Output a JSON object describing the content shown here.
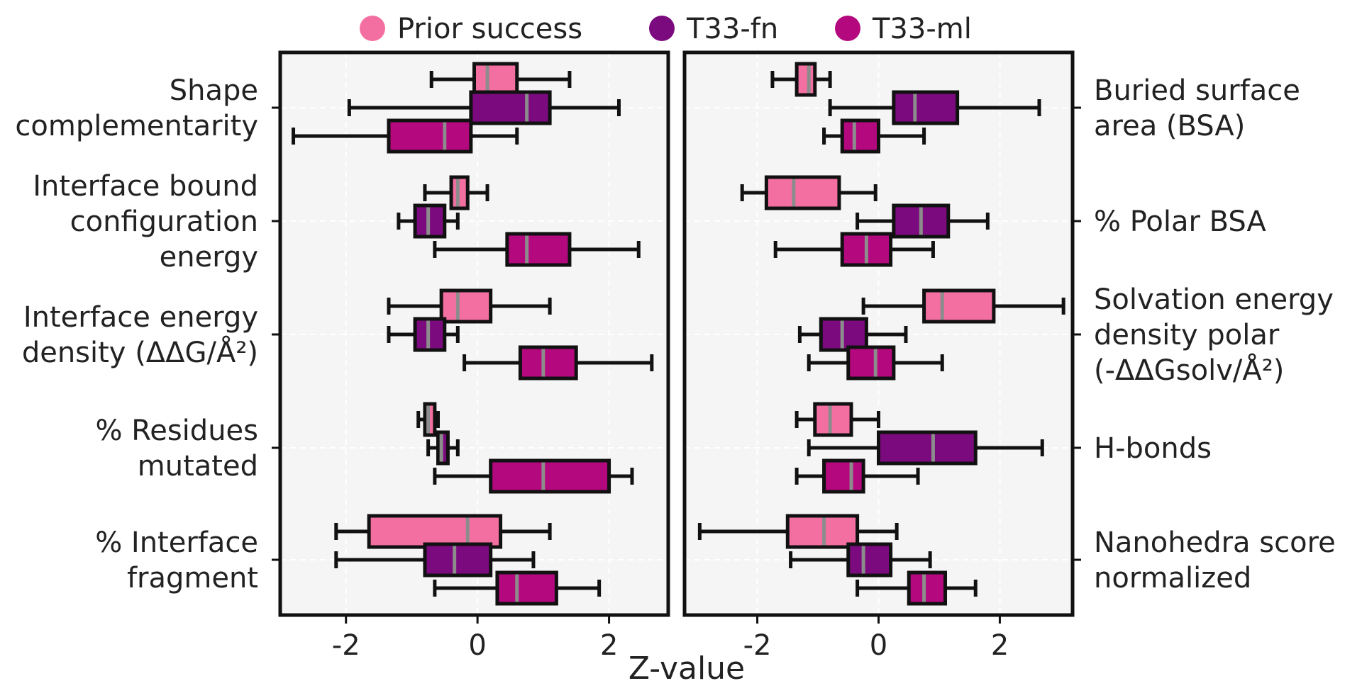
{
  "legend": [
    {
      "label": "Prior success",
      "color": "#f46fa1"
    },
    {
      "label": "T33-fn",
      "color": "#7b0a7e"
    },
    {
      "label": "T33-ml",
      "color": "#b4087e"
    }
  ],
  "xlabel": "Z-value",
  "chart_data": [
    {
      "type": "boxplot",
      "orientation": "horizontal",
      "panel": "left",
      "label_side": "left",
      "xlim": [
        -3.0,
        2.9
      ],
      "xticks": [
        -2,
        0,
        2
      ],
      "xtick_labels": [
        "-2",
        "0",
        "2"
      ],
      "grid": true,
      "groups": [
        {
          "label": [
            "Shape",
            "complementarity"
          ],
          "boxes": [
            {
              "series": "Prior success",
              "whislo": -0.7,
              "q1": -0.05,
              "median": 0.15,
              "q3": 0.6,
              "whishi": 1.4
            },
            {
              "series": "T33-fn",
              "whislo": -1.95,
              "q1": -0.1,
              "median": 0.75,
              "q3": 1.1,
              "whishi": 2.15
            },
            {
              "series": "T33-ml",
              "whislo": -2.8,
              "q1": -1.35,
              "median": -0.5,
              "q3": -0.1,
              "whishi": 0.6
            }
          ]
        },
        {
          "label": [
            "Interface bound",
            "configuration",
            "energy"
          ],
          "boxes": [
            {
              "series": "Prior success",
              "whislo": -0.8,
              "q1": -0.4,
              "median": -0.3,
              "q3": -0.15,
              "whishi": 0.15
            },
            {
              "series": "T33-fn",
              "whislo": -1.2,
              "q1": -0.95,
              "median": -0.75,
              "q3": -0.5,
              "whishi": -0.3
            },
            {
              "series": "T33-ml",
              "whislo": -0.65,
              "q1": 0.45,
              "median": 0.75,
              "q3": 1.4,
              "whishi": 2.45
            }
          ]
        },
        {
          "label": [
            "Interface energy",
            "density (ΔΔG/Å²)"
          ],
          "boxes": [
            {
              "series": "Prior success",
              "whislo": -1.35,
              "q1": -0.55,
              "median": -0.3,
              "q3": 0.2,
              "whishi": 1.1
            },
            {
              "series": "T33-fn",
              "whislo": -1.35,
              "q1": -0.95,
              "median": -0.75,
              "q3": -0.5,
              "whishi": -0.3
            },
            {
              "series": "T33-ml",
              "whislo": -0.2,
              "q1": 0.65,
              "median": 1.0,
              "q3": 1.5,
              "whishi": 2.65
            }
          ]
        },
        {
          "label": [
            "% Residues",
            "mutated"
          ],
          "boxes": [
            {
              "series": "Prior success",
              "whislo": -0.9,
              "q1": -0.8,
              "median": -0.75,
              "q3": -0.65,
              "whishi": -0.6
            },
            {
              "series": "T33-fn",
              "whislo": -0.75,
              "q1": -0.6,
              "median": -0.55,
              "q3": -0.45,
              "whishi": -0.3
            },
            {
              "series": "T33-ml",
              "whislo": -0.65,
              "q1": 0.2,
              "median": 1.0,
              "q3": 2.0,
              "whishi": 2.35
            }
          ]
        },
        {
          "label": [
            "% Interface",
            "fragment"
          ],
          "boxes": [
            {
              "series": "Prior success",
              "whislo": -2.15,
              "q1": -1.65,
              "median": -0.15,
              "q3": 0.35,
              "whishi": 1.1
            },
            {
              "series": "T33-fn",
              "whislo": -2.15,
              "q1": -0.8,
              "median": -0.35,
              "q3": 0.2,
              "whishi": 0.85
            },
            {
              "series": "T33-ml",
              "whislo": -0.65,
              "q1": 0.3,
              "median": 0.6,
              "q3": 1.2,
              "whishi": 1.85
            }
          ]
        }
      ]
    },
    {
      "type": "boxplot",
      "orientation": "horizontal",
      "panel": "right",
      "label_side": "right",
      "xlim": [
        -3.2,
        3.2
      ],
      "xticks": [
        -2,
        0,
        2
      ],
      "xtick_labels": [
        "-2",
        "0",
        "2"
      ],
      "grid": true,
      "groups": [
        {
          "label": [
            "Buried surface",
            "area (BSA)"
          ],
          "boxes": [
            {
              "series": "Prior success",
              "whislo": -1.75,
              "q1": -1.35,
              "median": -1.15,
              "q3": -1.05,
              "whishi": -0.8
            },
            {
              "series": "T33-fn",
              "whislo": -0.8,
              "q1": 0.25,
              "median": 0.6,
              "q3": 1.3,
              "whishi": 2.65
            },
            {
              "series": "T33-ml",
              "whislo": -0.9,
              "q1": -0.6,
              "median": -0.4,
              "q3": 0.0,
              "whishi": 0.75
            }
          ]
        },
        {
          "label": [
            "% Polar BSA"
          ],
          "boxes": [
            {
              "series": "Prior success",
              "whislo": -2.25,
              "q1": -1.85,
              "median": -1.4,
              "q3": -0.65,
              "whishi": -0.05
            },
            {
              "series": "T33-fn",
              "whislo": -0.35,
              "q1": 0.25,
              "median": 0.7,
              "q3": 1.15,
              "whishi": 1.8
            },
            {
              "series": "T33-ml",
              "whislo": -1.7,
              "q1": -0.6,
              "median": -0.2,
              "q3": 0.2,
              "whishi": 0.9
            }
          ]
        },
        {
          "label": [
            "Solvation energy",
            "density polar",
            "(-ΔΔGsolv/Å²)"
          ],
          "boxes": [
            {
              "series": "Prior success",
              "whislo": -0.25,
              "q1": 0.75,
              "median": 1.05,
              "q3": 1.9,
              "whishi": 3.05
            },
            {
              "series": "T33-fn",
              "whislo": -1.3,
              "q1": -0.95,
              "median": -0.6,
              "q3": -0.2,
              "whishi": 0.45
            },
            {
              "series": "T33-ml",
              "whislo": -1.15,
              "q1": -0.5,
              "median": -0.05,
              "q3": 0.25,
              "whishi": 1.05
            }
          ]
        },
        {
          "label": [
            "H-bonds"
          ],
          "boxes": [
            {
              "series": "Prior success",
              "whislo": -1.35,
              "q1": -1.05,
              "median": -0.8,
              "q3": -0.45,
              "whishi": 0.0
            },
            {
              "series": "T33-fn",
              "whislo": -1.15,
              "q1": 0.0,
              "median": 0.9,
              "q3": 1.6,
              "whishi": 2.7
            },
            {
              "series": "T33-ml",
              "whislo": -1.35,
              "q1": -0.9,
              "median": -0.45,
              "q3": -0.25,
              "whishi": 0.65
            }
          ]
        },
        {
          "label": [
            "Nanohedra score",
            "normalized"
          ],
          "boxes": [
            {
              "series": "Prior success",
              "whislo": -2.95,
              "q1": -1.5,
              "median": -0.9,
              "q3": -0.35,
              "whishi": 0.3
            },
            {
              "series": "T33-fn",
              "whislo": -1.45,
              "q1": -0.5,
              "median": -0.25,
              "q3": 0.2,
              "whishi": 0.85
            },
            {
              "series": "T33-ml",
              "whislo": -0.35,
              "q1": 0.5,
              "median": 0.75,
              "q3": 1.1,
              "whishi": 1.6
            }
          ]
        }
      ]
    }
  ]
}
